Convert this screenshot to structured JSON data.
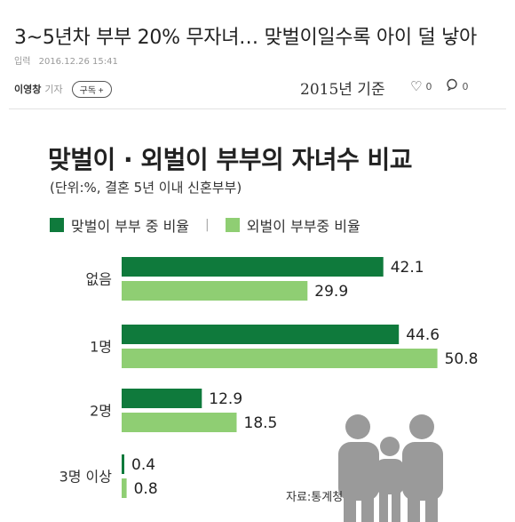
{
  "article": {
    "headline": "3~5년차 부부 20% 무자녀… 맞벌이일수록 아이 덜 낳아",
    "date_label": "입력",
    "date": "2016.12.26 15:41",
    "reporter": "이영창",
    "reporter_role": "기자",
    "subscribe_label": "구독 +",
    "basis_note": "2015년 기준",
    "like_count": "0",
    "comment_count": "0"
  },
  "icons": {
    "like": "heart-icon",
    "comment": "comment-icon",
    "family": "family-icon"
  },
  "colors": {
    "dual_income": "#0f7a3c",
    "single_income": "#8fce73",
    "family_icon": "#9a9a9a"
  },
  "chart_data": {
    "type": "bar",
    "orientation": "horizontal",
    "title": "맞벌이 · 외벌이 부부의 자녀수 비교",
    "subtitle": "(단위:%, 결혼 5년 이내 신혼부부)",
    "categories": [
      "없음",
      "1명",
      "2명",
      "3명 이상"
    ],
    "series": [
      {
        "name": "맞벌이 부부 중 비율",
        "values": [
          42.1,
          44.6,
          12.9,
          0.4
        ]
      },
      {
        "name": "외벌이 부부중 비율",
        "values": [
          29.9,
          50.8,
          18.5,
          0.8
        ]
      }
    ],
    "value_labels": [
      [
        "42.1",
        "44.6",
        "12.9",
        "0.4"
      ],
      [
        "29.9",
        "50.8",
        "18.5",
        "0.8"
      ]
    ],
    "legend_separator": "|",
    "legend_position": "top-left",
    "xlim": [
      0,
      52
    ],
    "grid": false,
    "source": "자료:통계청"
  }
}
